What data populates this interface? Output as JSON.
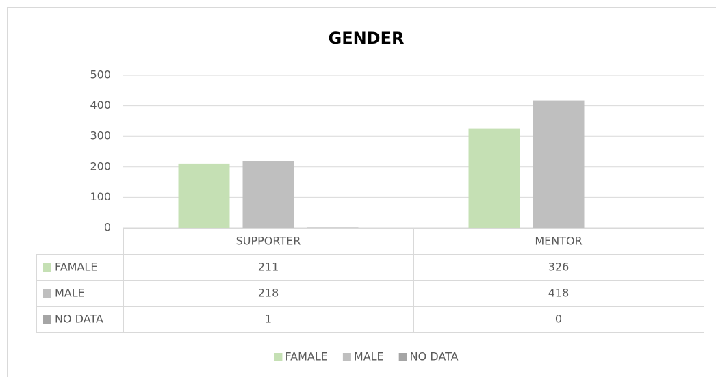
{
  "chart_data": {
    "type": "bar",
    "title": "GENDER",
    "categories": [
      "SUPPORTER",
      "MENTOR"
    ],
    "series": [
      {
        "name": "FAMALE",
        "color": "#c5e0b4",
        "values": [
          211,
          326
        ]
      },
      {
        "name": "MALE",
        "color": "#bfbfbf",
        "values": [
          218,
          418
        ]
      },
      {
        "name": "NO DATA",
        "color": "#a5a5a5",
        "values": [
          1,
          0
        ]
      }
    ],
    "ylim": [
      0,
      500
    ],
    "yticks": [
      0,
      100,
      200,
      300,
      400,
      500
    ],
    "grid": true,
    "legend": "bottom",
    "data_table": true
  }
}
